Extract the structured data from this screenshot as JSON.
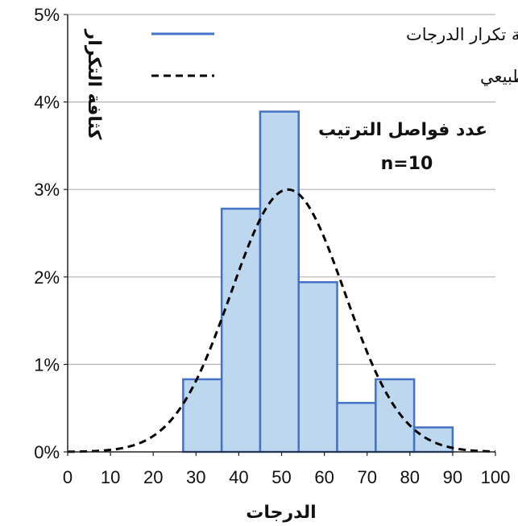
{
  "chart_data": {
    "type": "bar",
    "title": "",
    "xlabel": "الدرجات",
    "ylabel": "كثافة التكرار",
    "xlim": [
      0,
      100
    ],
    "ylim": [
      0,
      0.05
    ],
    "x_ticks": [
      "0",
      "10",
      "20",
      "30",
      "40",
      "50",
      "60",
      "70",
      "80",
      "90",
      "100"
    ],
    "y_ticks": [
      "0%",
      "1%",
      "2%",
      "3%",
      "4%",
      "5%"
    ],
    "grid": "horizontal",
    "legend_placement": "top",
    "series": [
      {
        "name": "كثافة تكرار الدرجات",
        "type": "histogram",
        "color": "#4472c4",
        "fill": "#bdd7ee",
        "bins": [
          {
            "from": 27,
            "to": 36,
            "value": 0.0083
          },
          {
            "from": 36,
            "to": 45,
            "value": 0.0278
          },
          {
            "from": 45,
            "to": 54,
            "value": 0.0389
          },
          {
            "from": 54,
            "to": 63,
            "value": 0.0194
          },
          {
            "from": 63,
            "to": 72,
            "value": 0.0056
          },
          {
            "from": 72,
            "to": 81,
            "value": 0.0083
          },
          {
            "from": 81,
            "to": 90,
            "value": 0.0028
          }
        ]
      },
      {
        "name": "منحني كثافة التكرار الطبيعي",
        "type": "line",
        "style": "dashed",
        "color": "#000000",
        "mean": 51.5,
        "sd": 13.3
      }
    ],
    "annotations": [
      "عدد فواصل الترتيب",
      "n=10"
    ]
  }
}
